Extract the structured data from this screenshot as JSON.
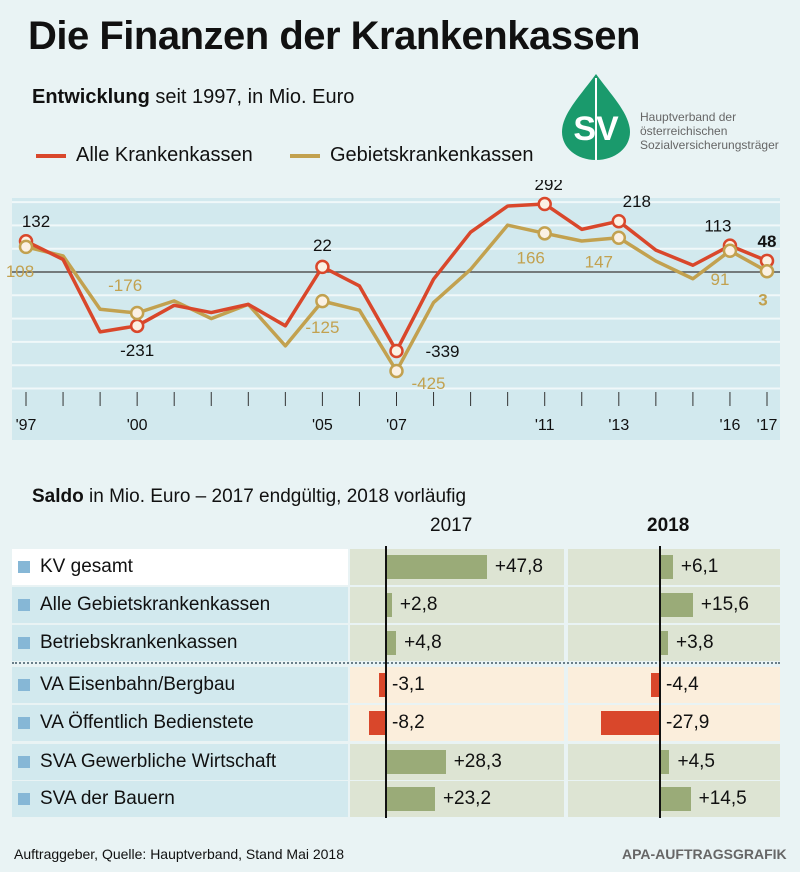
{
  "title": "Die Finanzen der Krankenkassen",
  "subtitle_bold": "Entwicklung",
  "subtitle_rest": " seit 1997, in Mio. Euro",
  "logo": {
    "letters": "SV",
    "text": [
      "Hauptverband der",
      "österreichischen",
      "Sozialversicherungsträger"
    ],
    "color": "#1a9a6c"
  },
  "chart_data": [
    {
      "type": "line",
      "x": [
        1997,
        1998,
        1999,
        2000,
        2001,
        2002,
        2003,
        2004,
        2005,
        2006,
        2007,
        2008,
        2009,
        2010,
        2011,
        2012,
        2013,
        2014,
        2015,
        2016,
        2017
      ],
      "xtick_labels": {
        "1997": "'97",
        "2000": "'00",
        "2005": "'05",
        "2007": "'07",
        "2011": "'11",
        "2013": "'13",
        "2016": "'16",
        "2017": "'17"
      },
      "ylim": [
        -500,
        300
      ],
      "grid": true,
      "legend": "top-left",
      "series": [
        {
          "name": "Alle Krankenkassen",
          "color": "#d9472b",
          "values": [
            132,
            54,
            -257,
            -231,
            -143,
            -174,
            -139,
            -231,
            22,
            -60,
            -339,
            -31,
            171,
            283,
            292,
            183,
            218,
            94,
            29,
            113,
            48
          ],
          "labels": {
            "1997": "132",
            "2000": "-231",
            "2005": "22",
            "2007": "-339",
            "2011": "292",
            "2013": "218",
            "2016": "113",
            "2017": "48"
          }
        },
        {
          "name": "Gebietskrankenkassen",
          "color": "#c2a14f",
          "values": [
            108,
            69,
            -160,
            -176,
            -124,
            -200,
            -139,
            -317,
            -125,
            -164,
            -425,
            -131,
            11,
            201,
            166,
            133,
            147,
            47,
            -29,
            91,
            3
          ],
          "labels": {
            "1997": "108",
            "2000": "-176",
            "2005": "-125",
            "2007": "-425",
            "2011": "166",
            "2013": "147",
            "2016": "91",
            "2017": "3"
          }
        }
      ]
    },
    {
      "type": "bar",
      "title_bold": "Saldo",
      "title_rest": " in Mio. Euro – 2017 endgültig, 2018 vorläufig",
      "columns": [
        "2017",
        "2018"
      ],
      "categories": [
        "KV gesamt",
        "Alle Gebietskrankenkassen",
        "Betriebskrankenkassen",
        "VA Eisenbahn/Bergbau",
        "VA Öffentlich Bedienstete",
        "SVA Gewerbliche Wirtschaft",
        "SVA der Bauern"
      ],
      "series": [
        {
          "name": "2017",
          "values": [
            47.8,
            2.8,
            4.8,
            -3.1,
            -8.2,
            28.3,
            23.2
          ],
          "labels": [
            "+47,8",
            "+2,8",
            "+4,8",
            "-3,1",
            "-8,2",
            "+28,3",
            "+23,2"
          ]
        },
        {
          "name": "2018",
          "values": [
            6.1,
            15.6,
            3.8,
            -4.4,
            -27.9,
            4.5,
            14.5
          ],
          "labels": [
            "+6,1",
            "+15,6",
            "+3,8",
            "-4,4",
            "-27,9",
            "+4,5",
            "+14,5"
          ]
        }
      ],
      "colors": {
        "positive": "#9aab78",
        "negative": "#d9472b",
        "cell_bg": "#dde4d3",
        "cell_bg_neg": "#fbeedc"
      }
    }
  ],
  "source": "Auftraggeber, Quelle: Hauptverband, Stand Mai 2018",
  "credit": "APA-AUFTRAGSGRAFIK"
}
